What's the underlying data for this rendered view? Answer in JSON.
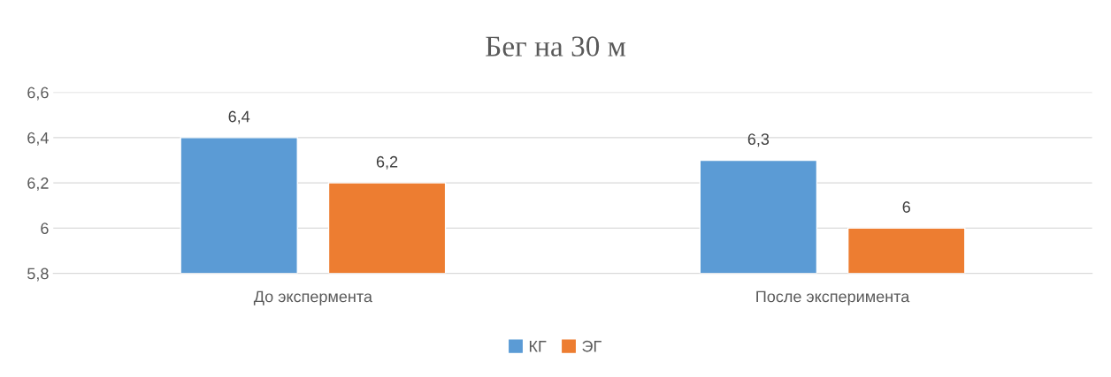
{
  "chart_data": {
    "type": "bar",
    "title": "Бег на 30 м",
    "categories": [
      "До экспермента",
      "После эксперимента"
    ],
    "series": [
      {
        "name": "КГ",
        "color": "#5b9bd5",
        "values": [
          6.4,
          6.3
        ]
      },
      {
        "name": "ЭГ",
        "color": "#ed7d31",
        "values": [
          6.2,
          6
        ]
      }
    ],
    "ylim": [
      5.8,
      6.6
    ],
    "yticks": [
      {
        "value": 5.8,
        "label": "5,8"
      },
      {
        "value": 6,
        "label": "6"
      },
      {
        "value": 6.2,
        "label": "6,2"
      },
      {
        "value": 6.4,
        "label": "6,4"
      },
      {
        "value": 6.6,
        "label": "6,6"
      }
    ],
    "value_labels": [
      [
        "6,4",
        "6,3"
      ],
      [
        "6,2",
        "6"
      ]
    ],
    "grid": "y",
    "legend": "bottom"
  }
}
